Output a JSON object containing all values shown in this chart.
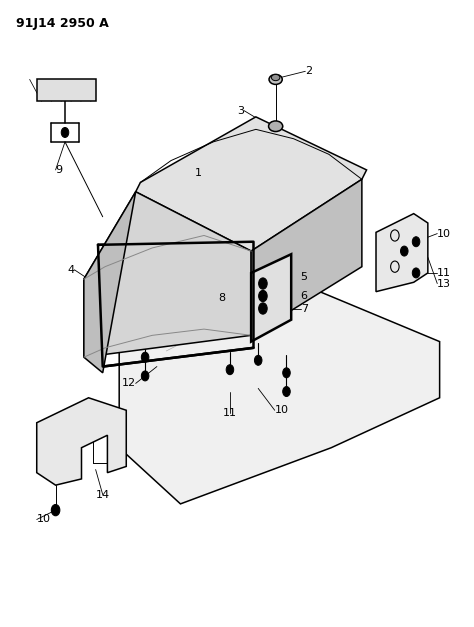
{
  "title_text": "91J14 2950 A",
  "bg_color": "#ffffff",
  "line_color": "#000000",
  "label_color": "#000000",
  "fig_width": 4.74,
  "fig_height": 6.27,
  "dpi": 100,
  "title_fontsize": 9,
  "label_fontsize": 8
}
